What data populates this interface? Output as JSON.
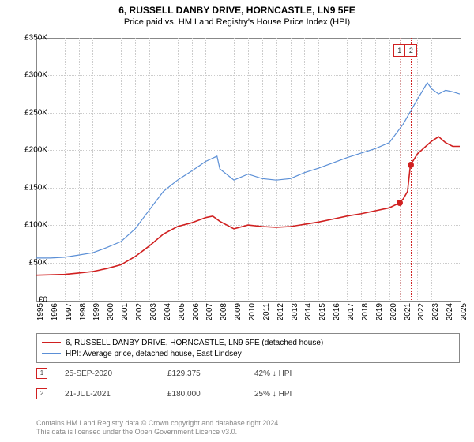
{
  "title": "6, RUSSELL DANBY DRIVE, HORNCASTLE, LN9 5FE",
  "subtitle": "Price paid vs. HM Land Registry's House Price Index (HPI)",
  "chart": {
    "type": "line",
    "background_color": "#ffffff",
    "grid_color": "#cccccc",
    "border_color": "#888888",
    "ylim": [
      0,
      350000
    ],
    "ytick_step": 50000,
    "ylabels": [
      "£0",
      "£50K",
      "£100K",
      "£150K",
      "£200K",
      "£250K",
      "£300K",
      "£350K"
    ],
    "xlim": [
      1995,
      2025
    ],
    "xticks": [
      1995,
      1996,
      1997,
      1998,
      1999,
      2000,
      2001,
      2002,
      2003,
      2004,
      2005,
      2006,
      2007,
      2008,
      2009,
      2010,
      2011,
      2012,
      2013,
      2014,
      2015,
      2016,
      2017,
      2018,
      2019,
      2020,
      2021,
      2022,
      2023,
      2024,
      2025
    ],
    "series_red": {
      "label": "6, RUSSELL DANBY DRIVE, HORNCASTLE, LN9 5FE (detached house)",
      "color": "#d02020",
      "width": 1.6,
      "data": [
        [
          1995,
          33000
        ],
        [
          1996,
          33500
        ],
        [
          1997,
          34000
        ],
        [
          1998,
          36000
        ],
        [
          1999,
          38000
        ],
        [
          2000,
          42000
        ],
        [
          2001,
          47000
        ],
        [
          2002,
          58000
        ],
        [
          2003,
          72000
        ],
        [
          2004,
          88000
        ],
        [
          2005,
          98000
        ],
        [
          2006,
          103000
        ],
        [
          2007,
          110000
        ],
        [
          2007.5,
          112000
        ],
        [
          2008,
          105000
        ],
        [
          2009,
          95000
        ],
        [
          2010,
          100000
        ],
        [
          2011,
          98000
        ],
        [
          2012,
          97000
        ],
        [
          2013,
          98000
        ],
        [
          2014,
          101000
        ],
        [
          2015,
          104000
        ],
        [
          2016,
          108000
        ],
        [
          2017,
          112000
        ],
        [
          2018,
          115000
        ],
        [
          2019,
          119000
        ],
        [
          2020,
          123000
        ],
        [
          2020.7,
          129375
        ],
        [
          2021,
          135000
        ],
        [
          2021.3,
          145000
        ],
        [
          2021.5,
          180000
        ],
        [
          2022,
          195000
        ],
        [
          2023,
          212000
        ],
        [
          2023.5,
          218000
        ],
        [
          2024,
          210000
        ],
        [
          2024.5,
          205000
        ],
        [
          2025,
          205000
        ]
      ]
    },
    "series_blue": {
      "label": "HPI: Average price, detached house, East Lindsey",
      "color": "#5b8fd6",
      "width": 1.2,
      "data": [
        [
          1995,
          56000
        ],
        [
          1996,
          56000
        ],
        [
          1997,
          57000
        ],
        [
          1998,
          60000
        ],
        [
          1999,
          63000
        ],
        [
          2000,
          70000
        ],
        [
          2001,
          78000
        ],
        [
          2002,
          95000
        ],
        [
          2003,
          120000
        ],
        [
          2004,
          145000
        ],
        [
          2005,
          160000
        ],
        [
          2006,
          172000
        ],
        [
          2007,
          185000
        ],
        [
          2007.8,
          192000
        ],
        [
          2008,
          175000
        ],
        [
          2009,
          160000
        ],
        [
          2010,
          168000
        ],
        [
          2011,
          162000
        ],
        [
          2012,
          160000
        ],
        [
          2013,
          162000
        ],
        [
          2014,
          170000
        ],
        [
          2015,
          176000
        ],
        [
          2016,
          183000
        ],
        [
          2017,
          190000
        ],
        [
          2018,
          196000
        ],
        [
          2019,
          202000
        ],
        [
          2020,
          210000
        ],
        [
          2021,
          235000
        ],
        [
          2022,
          268000
        ],
        [
          2022.7,
          290000
        ],
        [
          2023,
          282000
        ],
        [
          2023.5,
          275000
        ],
        [
          2024,
          280000
        ],
        [
          2024.5,
          278000
        ],
        [
          2025,
          275000
        ]
      ]
    },
    "markers": [
      {
        "num": "1",
        "x": 2020.73,
        "color": "#d8a0a0",
        "point_color": "#d02020",
        "point_y": 129375
      },
      {
        "num": "2",
        "x": 2021.55,
        "color": "#d02020",
        "point_color": "#d02020",
        "point_y": 180000
      }
    ]
  },
  "legend": {
    "items": [
      {
        "color": "#d02020",
        "label": "6, RUSSELL DANBY DRIVE, HORNCASTLE, LN9 5FE (detached house)"
      },
      {
        "color": "#5b8fd6",
        "label": "HPI: Average price, detached house, East Lindsey"
      }
    ]
  },
  "sales": [
    {
      "num": "1",
      "date": "25-SEP-2020",
      "price": "£129,375",
      "pct": "42% ↓ HPI"
    },
    {
      "num": "2",
      "date": "21-JUL-2021",
      "price": "£180,000",
      "pct": "25% ↓ HPI"
    }
  ],
  "footer": {
    "line1": "Contains HM Land Registry data © Crown copyright and database right 2024.",
    "line2": "This data is licensed under the Open Government Licence v3.0."
  }
}
